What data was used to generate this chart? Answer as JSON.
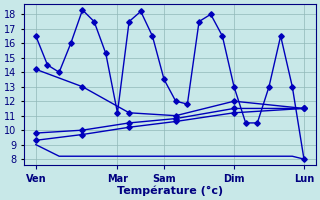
{
  "background_color": "#c8e8e8",
  "grid_color": "#90b8b8",
  "line_color": "#0000bb",
  "xlabel": "Température (°c)",
  "yticks": [
    8,
    9,
    10,
    11,
    12,
    13,
    14,
    15,
    16,
    17,
    18
  ],
  "ylim": [
    7.6,
    18.7
  ],
  "xlim": [
    0,
    12.5
  ],
  "xtick_labels": [
    "Ven",
    "Mar",
    "Sam",
    "Dim",
    "Lun"
  ],
  "xtick_positions": [
    0.5,
    4.0,
    6.0,
    9.0,
    12.0
  ],
  "main_x": [
    0.5,
    1.0,
    1.5,
    2.0,
    2.5,
    3.0,
    3.5,
    4.0,
    4.5,
    5.0,
    5.5,
    6.0,
    6.5,
    7.0,
    7.5,
    8.0,
    8.5,
    9.0,
    9.5,
    10.0,
    10.5,
    11.0,
    11.5,
    12.0
  ],
  "main_y": [
    16.5,
    14.5,
    14.0,
    16.0,
    18.3,
    17.5,
    15.3,
    11.2,
    17.5,
    18.2,
    16.5,
    13.5,
    12.0,
    11.8,
    17.5,
    18.0,
    16.5,
    13.0,
    10.5,
    10.5,
    13.0,
    16.5,
    13.0,
    8.0
  ],
  "upper_x": [
    0.5,
    2.5,
    4.5,
    6.5,
    9.0,
    12.0
  ],
  "upper_y": [
    14.2,
    13.0,
    11.2,
    11.0,
    12.0,
    11.5
  ],
  "mid1_x": [
    0.5,
    2.5,
    4.5,
    6.5,
    9.0,
    12.0
  ],
  "mid1_y": [
    9.8,
    10.0,
    10.5,
    10.8,
    11.5,
    11.5
  ],
  "mid2_x": [
    0.5,
    2.5,
    4.5,
    6.5,
    9.0,
    12.0
  ],
  "mid2_y": [
    9.3,
    9.7,
    10.2,
    10.6,
    11.2,
    11.5
  ],
  "low_x": [
    0.5,
    1.5,
    2.0,
    6.0,
    9.0,
    11.5,
    12.0
  ],
  "low_y": [
    9.0,
    8.2,
    8.2,
    8.2,
    8.2,
    8.2,
    8.0
  ]
}
